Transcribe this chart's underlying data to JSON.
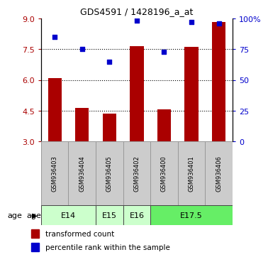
{
  "title": "GDS4591 / 1428196_a_at",
  "samples": [
    "GSM936403",
    "GSM936404",
    "GSM936405",
    "GSM936402",
    "GSM936400",
    "GSM936401",
    "GSM936406"
  ],
  "bar_values": [
    6.1,
    4.62,
    4.35,
    7.65,
    4.55,
    7.62,
    8.82
  ],
  "dot_values": [
    85,
    75,
    65,
    98,
    73,
    97,
    96
  ],
  "bar_color": "#AA0000",
  "dot_color": "#0000CC",
  "ylim_left": [
    3,
    9
  ],
  "ylim_right": [
    0,
    100
  ],
  "yticks_left": [
    3,
    4.5,
    6,
    7.5,
    9
  ],
  "yticks_right": [
    0,
    25,
    50,
    75,
    100
  ],
  "ytick_labels_right": [
    "0",
    "25",
    "50",
    "75",
    "100%"
  ],
  "hlines": [
    4.5,
    6.0,
    7.5
  ],
  "legend_bar_label": "transformed count",
  "legend_dot_label": "percentile rank within the sample",
  "bar_color_left_axis": "#AA0000",
  "dot_color_right_axis": "#0000CC",
  "background_color": "#ffffff",
  "sample_box_color": "#cccccc",
  "sample_box_edge": "#999999",
  "age_groups": [
    {
      "label": "E14",
      "start": 0,
      "end": 1,
      "color": "#ccffcc"
    },
    {
      "label": "E15",
      "start": 2,
      "end": 2,
      "color": "#ccffcc"
    },
    {
      "label": "E16",
      "start": 3,
      "end": 3,
      "color": "#ccffcc"
    },
    {
      "label": "E17.5",
      "start": 4,
      "end": 6,
      "color": "#66ee66"
    }
  ],
  "age_label": "age"
}
